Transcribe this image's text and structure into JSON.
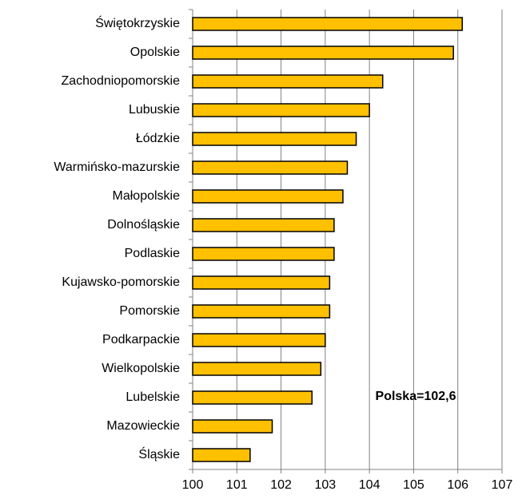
{
  "chart_data": {
    "type": "bar",
    "orientation": "horizontal",
    "categories": [
      "Świętokrzyskie",
      "Opolskie",
      "Zachodniopomorskie",
      "Lubuskie",
      "Łódzkie",
      "Warmińsko-mazurskie",
      "Małopolskie",
      "Dolnośląskie",
      "Podlaskie",
      "Kujawsko-pomorskie",
      "Pomorskie",
      "Podkarpackie",
      "Wielkopolskie",
      "Lubelskie",
      "Mazowieckie",
      "Śląskie"
    ],
    "values": [
      106.1,
      105.9,
      104.3,
      104.0,
      103.7,
      103.5,
      103.4,
      103.2,
      103.2,
      103.1,
      103.1,
      103.0,
      102.9,
      102.7,
      101.8,
      101.3
    ],
    "color": "#ffc000",
    "xlim": [
      100,
      107
    ],
    "xticks": [
      100,
      101,
      102,
      103,
      104,
      105,
      106,
      107
    ],
    "grid": true,
    "annotation": "Polska=102,6"
  }
}
